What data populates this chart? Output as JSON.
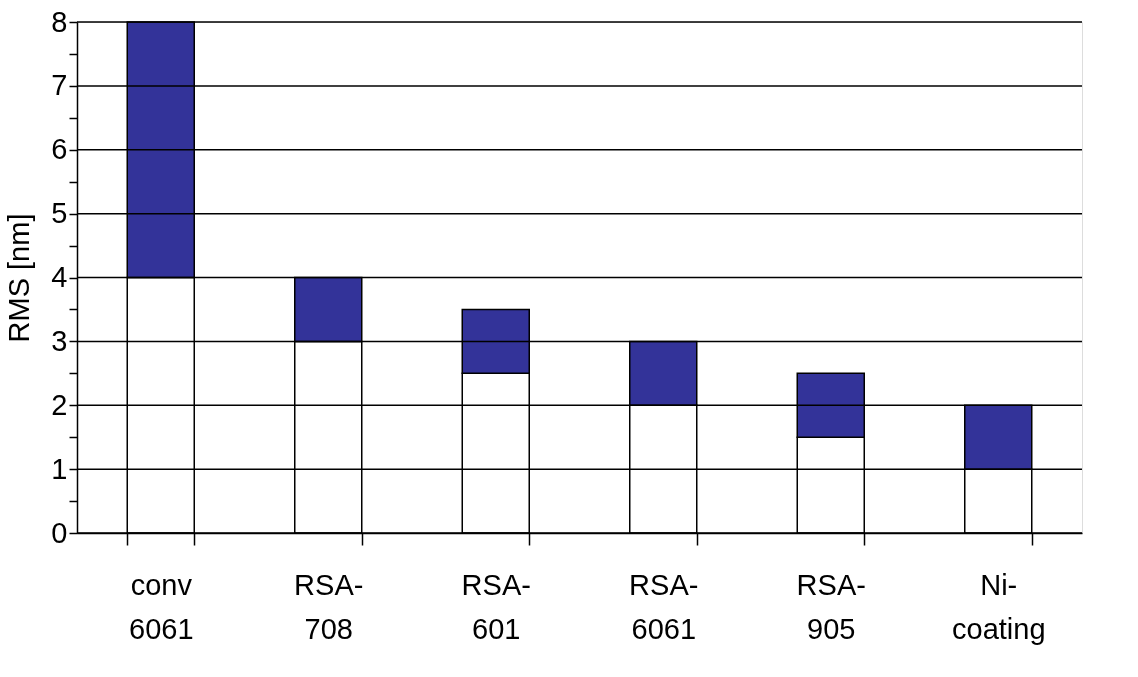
{
  "chart_data": {
    "type": "bar",
    "stacked": true,
    "ylabel": "RMS [nm]",
    "categories": [
      "conv 6061",
      "RSA-708",
      "RSA-601",
      "RSA-6061",
      "RSA-905",
      "Ni-coating"
    ],
    "series": [
      {
        "color": "#ffffff",
        "values": [
          4,
          3,
          2.5,
          2,
          1.5,
          1
        ]
      },
      {
        "color": "#333399",
        "values": [
          4,
          1,
          1,
          1,
          1,
          1
        ]
      }
    ],
    "ylim": [
      0,
      8
    ],
    "yticks": [
      0,
      {
        "value": 0.5,
        "label": null
      },
      1,
      {
        "value": 1.5,
        "label": null
      },
      2,
      {
        "value": 2.5,
        "label": null
      },
      3,
      {
        "value": 3.5,
        "label": null
      },
      4,
      {
        "value": 4.5,
        "label": null
      },
      5,
      {
        "value": 5.5,
        "label": null
      },
      6,
      {
        "value": 6.5,
        "label": null
      },
      7,
      {
        "value": 7.5,
        "label": null
      },
      8
    ],
    "grid": "y",
    "legend": false
  }
}
